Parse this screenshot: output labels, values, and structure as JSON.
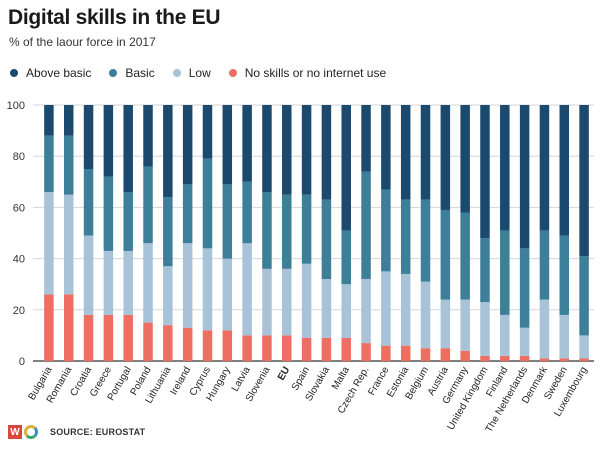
{
  "header": {
    "title": "Digital skills in the EU",
    "subtitle": "% of the laour force in 2017"
  },
  "footer": {
    "source": "SOURCE: EUROSTAT"
  },
  "chart_data": {
    "type": "bar",
    "stacked": true,
    "ylim": [
      0,
      100
    ],
    "yticks": [
      "0",
      "20",
      "40",
      "60",
      "80",
      "100"
    ],
    "grid": true,
    "legend_position": "top-left",
    "categories": [
      "Bulgaria",
      "Romania",
      "Croatia",
      "Greece",
      "Portugal",
      "Poland",
      "Lithuania",
      "Ireland",
      "Cyprus",
      "Hungary",
      "Latvia",
      "Slovenia",
      "EU",
      "Spain",
      "Slovakia",
      "Malta",
      "Czech Rep.",
      "France",
      "Estonia",
      "Belgium",
      "Austria",
      "Germany",
      "United Kingdom",
      "Finland",
      "The Netherlands",
      "Denmark",
      "Sweden",
      "Luxembourg"
    ],
    "highlight_category": "EU",
    "series": [
      {
        "name": "No skills or no internet use",
        "color": "#ee6e62",
        "values": [
          26,
          26,
          18,
          18,
          18,
          15,
          14,
          13,
          12,
          12,
          10,
          10,
          10,
          9,
          9,
          9,
          7,
          6,
          6,
          5,
          5,
          4,
          2,
          2,
          2,
          1,
          1,
          1
        ]
      },
      {
        "name": "Low",
        "color": "#a8c2d8",
        "values": [
          40,
          39,
          31,
          25,
          25,
          31,
          23,
          33,
          32,
          28,
          36,
          26,
          26,
          29,
          23,
          21,
          25,
          29,
          28,
          26,
          19,
          20,
          21,
          16,
          11,
          23,
          17,
          9
        ]
      },
      {
        "name": "Basic",
        "color": "#3d7f99",
        "values": [
          22,
          23,
          26,
          29,
          23,
          30,
          27,
          23,
          35,
          29,
          24,
          30,
          29,
          27,
          31,
          21,
          42,
          32,
          29,
          32,
          35,
          34,
          25,
          33,
          31,
          27,
          31,
          31
        ]
      },
      {
        "name": "Above basic",
        "color": "#1b4a6e",
        "values": [
          12,
          12,
          25,
          28,
          34,
          24,
          36,
          31,
          21,
          31,
          30,
          34,
          35,
          35,
          37,
          49,
          26,
          33,
          37,
          37,
          41,
          42,
          52,
          49,
          56,
          49,
          51,
          59
        ]
      }
    ]
  }
}
